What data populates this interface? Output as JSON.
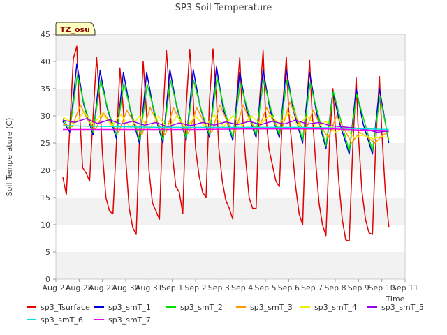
{
  "chart_data": {
    "type": "line",
    "title": "SP3 Soil Temperature",
    "xlabel": "Time",
    "ylabel": "Soil Temperature (C)",
    "badge": "TZ_osu",
    "ylim": [
      0,
      45
    ],
    "yticks": [
      0,
      5,
      10,
      15,
      20,
      25,
      30,
      35,
      40,
      45
    ],
    "xlim": [
      0,
      15
    ],
    "x_tick_labels": [
      "Aug 27",
      "Aug 28",
      "Aug 29",
      "Aug 30",
      "Aug 31",
      "Sep 1",
      "Sep 2",
      "Sep 3",
      "Sep 4",
      "Sep 5",
      "Sep 6",
      "Sep 7",
      "Sep 8",
      "Sep 9",
      "Sep 10",
      "Sep 11"
    ],
    "x_unit": "days since Aug 27 00:00",
    "grid": "horizontal alternating bands",
    "legend_position": "bottom",
    "series": [
      {
        "name": "sp3_Tsurface",
        "color": "#e00000",
        "width": 1.5,
        "x": [
          0.3,
          0.45,
          0.6,
          0.75,
          0.9,
          1.0,
          1.15,
          1.3,
          1.45,
          1.6,
          1.75,
          1.9,
          2.0,
          2.15,
          2.3,
          2.45,
          2.6,
          2.75,
          2.9,
          3.0,
          3.15,
          3.3,
          3.45,
          3.6,
          3.75,
          3.9,
          4.0,
          4.15,
          4.3,
          4.45,
          4.6,
          4.75,
          4.9,
          5.0,
          5.15,
          5.3,
          5.45,
          5.6,
          5.75,
          5.9,
          6.0,
          6.15,
          6.3,
          6.45,
          6.6,
          6.75,
          6.9,
          7.0,
          7.15,
          7.3,
          7.45,
          7.6,
          7.75,
          7.9,
          8.0,
          8.15,
          8.3,
          8.45,
          8.6,
          8.75,
          8.9,
          9.0,
          9.15,
          9.3,
          9.45,
          9.6,
          9.75,
          9.9,
          10.0,
          10.15,
          10.3,
          10.45,
          10.6,
          10.75,
          10.9,
          11.0,
          11.15,
          11.3,
          11.45,
          11.6,
          11.75,
          11.9,
          12.0,
          12.15,
          12.3,
          12.45,
          12.6,
          12.75,
          12.9,
          13.0,
          13.15,
          13.3,
          13.45,
          13.6,
          13.75,
          13.9,
          14.0,
          14.15,
          14.3
        ],
        "values": [
          18.7,
          15.5,
          28.0,
          40.5,
          42.8,
          32.0,
          20.5,
          19.5,
          18.0,
          30.0,
          40.8,
          32.0,
          23.0,
          15.0,
          12.5,
          12.0,
          25.0,
          38.8,
          31.0,
          22.0,
          13.0,
          9.5,
          8.2,
          27.0,
          40.0,
          30.0,
          20.0,
          14.0,
          12.5,
          11.0,
          30.0,
          42.0,
          33.0,
          23.0,
          17.0,
          16.0,
          12.0,
          32.0,
          42.2,
          33.0,
          24.0,
          19.0,
          16.0,
          15.0,
          33.0,
          42.3,
          33.0,
          24.0,
          18.0,
          14.5,
          13.0,
          11.0,
          32.0,
          40.8,
          31.0,
          22.0,
          15.0,
          13.0,
          13.0,
          33.0,
          42.0,
          31.0,
          24.0,
          21.0,
          18.0,
          17.0,
          32.0,
          40.8,
          31.0,
          24.0,
          17.0,
          12.0,
          10.0,
          30.0,
          40.2,
          31.0,
          22.0,
          14.0,
          10.0,
          8.0,
          25.0,
          35.0,
          28.0,
          18.0,
          11.0,
          7.2,
          7.0,
          24.0,
          37.0,
          26.0,
          16.0,
          11.0,
          8.5,
          8.2,
          26.0,
          37.2,
          27.0,
          16.0,
          9.6
        ]
      },
      {
        "name": "sp3_smT_1",
        "color": "#0000dd",
        "width": 1.5,
        "x": [
          0.3,
          0.6,
          0.9,
          1.2,
          1.6,
          1.9,
          2.2,
          2.6,
          2.9,
          3.2,
          3.6,
          3.9,
          4.2,
          4.6,
          4.9,
          5.2,
          5.6,
          5.9,
          6.2,
          6.6,
          6.9,
          7.2,
          7.6,
          7.9,
          8.2,
          8.6,
          8.9,
          9.2,
          9.6,
          9.9,
          10.2,
          10.6,
          10.9,
          11.2,
          11.6,
          11.9,
          12.2,
          12.6,
          12.9,
          13.2,
          13.6,
          13.9,
          14.3
        ],
        "values": [
          29.0,
          27.0,
          39.6,
          32.0,
          26.5,
          38.3,
          31.5,
          25.8,
          38.0,
          31.0,
          24.8,
          38.0,
          31.0,
          25.0,
          38.5,
          31.5,
          25.5,
          38.5,
          31.5,
          26.0,
          39.0,
          31.0,
          25.5,
          38.0,
          31.0,
          26.0,
          38.5,
          31.0,
          26.0,
          38.5,
          31.0,
          25.0,
          38.0,
          30.5,
          24.0,
          34.5,
          28.5,
          23.0,
          35.0,
          28.5,
          23.0,
          35.0,
          25.0
        ]
      },
      {
        "name": "sp3_smT_2",
        "color": "#00e000",
        "width": 1.5,
        "x": [
          0.3,
          0.6,
          0.92,
          1.25,
          1.6,
          1.92,
          2.25,
          2.6,
          2.92,
          3.25,
          3.6,
          3.92,
          4.25,
          4.6,
          4.92,
          5.25,
          5.6,
          5.92,
          6.25,
          6.6,
          6.92,
          7.25,
          7.6,
          7.92,
          8.25,
          8.6,
          8.92,
          9.25,
          9.6,
          9.92,
          10.25,
          10.6,
          10.92,
          11.25,
          11.6,
          11.92,
          12.25,
          12.6,
          12.92,
          13.25,
          13.6,
          13.92,
          14.3
        ],
        "values": [
          29.5,
          27.5,
          37.5,
          31.5,
          27.0,
          36.5,
          31.0,
          26.5,
          36.0,
          30.5,
          25.5,
          35.8,
          30.5,
          25.5,
          36.5,
          31.0,
          25.8,
          36.5,
          31.0,
          26.5,
          37.0,
          31.0,
          26.0,
          36.0,
          31.0,
          26.5,
          36.5,
          31.0,
          26.5,
          36.5,
          31.0,
          25.5,
          36.0,
          30.5,
          24.5,
          34.5,
          29.0,
          23.5,
          34.0,
          29.0,
          23.5,
          33.5,
          25.5
        ]
      },
      {
        "name": "sp3_smT_3",
        "color": "#ff9900",
        "width": 1.5,
        "x": [
          0.3,
          0.7,
          1.05,
          1.4,
          1.7,
          2.05,
          2.4,
          2.7,
          3.05,
          3.4,
          3.7,
          4.05,
          4.4,
          4.7,
          5.05,
          5.4,
          5.7,
          6.05,
          6.4,
          6.7,
          7.05,
          7.4,
          7.7,
          8.05,
          8.4,
          8.7,
          9.05,
          9.4,
          9.7,
          10.05,
          10.4,
          10.7,
          11.05,
          11.4,
          11.7,
          12.05,
          12.4,
          12.7,
          13.05,
          13.4,
          13.7,
          14.05,
          14.3
        ],
        "values": [
          28.5,
          28.0,
          32.0,
          29.0,
          27.5,
          30.5,
          28.5,
          27.0,
          31.0,
          28.5,
          26.5,
          31.5,
          28.5,
          26.5,
          31.5,
          28.5,
          26.8,
          31.5,
          28.5,
          27.0,
          32.0,
          28.5,
          27.0,
          32.0,
          28.5,
          27.5,
          31.5,
          28.5,
          27.5,
          32.5,
          29.0,
          27.0,
          31.0,
          28.0,
          26.0,
          30.0,
          27.5,
          25.0,
          27.0,
          26.0,
          25.0,
          26.5,
          27.0
        ]
      },
      {
        "name": "sp3_smT_4",
        "color": "#f0f000",
        "width": 1.5,
        "x": [
          0.3,
          0.8,
          1.2,
          1.6,
          2.0,
          2.4,
          2.8,
          3.2,
          3.6,
          4.0,
          4.4,
          4.8,
          5.2,
          5.6,
          6.0,
          6.4,
          6.8,
          7.2,
          7.6,
          8.0,
          8.4,
          8.8,
          9.2,
          9.6,
          10.0,
          10.4,
          10.8,
          11.2,
          11.6,
          12.0,
          12.4,
          12.8,
          13.2,
          13.6,
          14.0,
          14.3
        ],
        "values": [
          29.8,
          28.5,
          30.8,
          28.5,
          30.5,
          28.2,
          30.2,
          27.8,
          30.0,
          27.5,
          30.0,
          27.5,
          30.0,
          27.8,
          30.0,
          28.0,
          30.2,
          28.0,
          30.0,
          28.2,
          30.0,
          28.5,
          30.2,
          28.5,
          30.5,
          28.2,
          30.0,
          27.8,
          29.0,
          27.0,
          28.0,
          26.0,
          26.5,
          25.8,
          26.2,
          26.0
        ]
      },
      {
        "name": "sp3_smT_5",
        "color": "#9900ee",
        "width": 1.5,
        "x": [
          0.3,
          0.8,
          1.3,
          1.8,
          2.3,
          2.8,
          3.3,
          3.8,
          4.3,
          4.8,
          5.3,
          5.8,
          6.3,
          6.8,
          7.3,
          7.8,
          8.3,
          8.8,
          9.3,
          9.8,
          10.3,
          10.8,
          11.3,
          11.8,
          12.3,
          12.8,
          13.3,
          13.8,
          14.3
        ],
        "values": [
          29.2,
          28.8,
          29.5,
          28.6,
          29.3,
          28.5,
          29.0,
          28.3,
          28.8,
          28.0,
          28.7,
          28.2,
          28.8,
          28.3,
          28.9,
          28.4,
          29.0,
          28.4,
          29.0,
          28.5,
          29.2,
          28.5,
          28.8,
          28.2,
          28.0,
          27.8,
          27.5,
          27.0,
          27.2
        ]
      },
      {
        "name": "sp3_smT_6",
        "color": "#00e0e0",
        "width": 1.5,
        "x": [
          0.3,
          1.5,
          3.0,
          4.5,
          6.0,
          7.5,
          9.0,
          10.5,
          12.0,
          13.5,
          14.3
        ],
        "values": [
          28.2,
          28.1,
          28.0,
          27.9,
          27.9,
          27.9,
          27.9,
          27.9,
          27.8,
          27.6,
          27.5
        ]
      },
      {
        "name": "sp3_smT_7",
        "color": "#ee00ee",
        "width": 1.5,
        "x": [
          0.3,
          2.0,
          4.0,
          6.0,
          8.0,
          10.0,
          12.0,
          13.0,
          14.3
        ],
        "values": [
          27.5,
          27.5,
          27.5,
          27.5,
          27.6,
          27.6,
          27.6,
          27.4,
          27.3
        ]
      }
    ]
  }
}
